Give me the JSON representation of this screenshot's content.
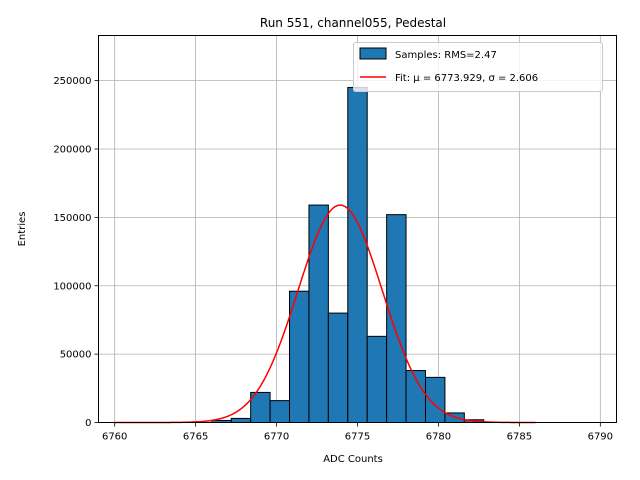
{
  "chart_data": {
    "type": "bar",
    "title": "Run 551, channel055, Pedestal",
    "xlabel": "ADC Counts",
    "ylabel": "Entries",
    "xlim": [
      6759,
      6791
    ],
    "ylim": [
      0,
      283000
    ],
    "xticks": [
      6760,
      6765,
      6770,
      6775,
      6780,
      6785,
      6790
    ],
    "yticks": [
      0,
      50000,
      100000,
      150000,
      200000,
      250000
    ],
    "grid": true,
    "legend_position": "top-right",
    "bin_width": 1.2,
    "bins": [
      {
        "x0": 6766.0,
        "value": 1500
      },
      {
        "x0": 6767.2,
        "value": 3000
      },
      {
        "x0": 6768.4,
        "value": 22000
      },
      {
        "x0": 6769.6,
        "value": 16000
      },
      {
        "x0": 6770.8,
        "value": 96000
      },
      {
        "x0": 6772.0,
        "value": 159000
      },
      {
        "x0": 6773.2,
        "value": 80000
      },
      {
        "x0": 6774.4,
        "value": 245000
      },
      {
        "x0": 6775.6,
        "value": 63000
      },
      {
        "x0": 6776.8,
        "value": 152000
      },
      {
        "x0": 6778.0,
        "value": 38000
      },
      {
        "x0": 6779.2,
        "value": 33000
      },
      {
        "x0": 6780.4,
        "value": 7000
      },
      {
        "x0": 6781.6,
        "value": 2000
      }
    ],
    "series": [
      {
        "name": "Samples: RMS=2.47",
        "kind": "histogram",
        "color": "#1f77b4",
        "edgecolor": "#000000"
      },
      {
        "name": "Fit: μ = 6773.929, σ = 2.606",
        "kind": "gaussian-fit",
        "color": "#ff0000",
        "mu": 6773.929,
        "sigma": 2.606,
        "amplitude": 159000,
        "x_range": [
          6760,
          6786
        ]
      }
    ]
  }
}
